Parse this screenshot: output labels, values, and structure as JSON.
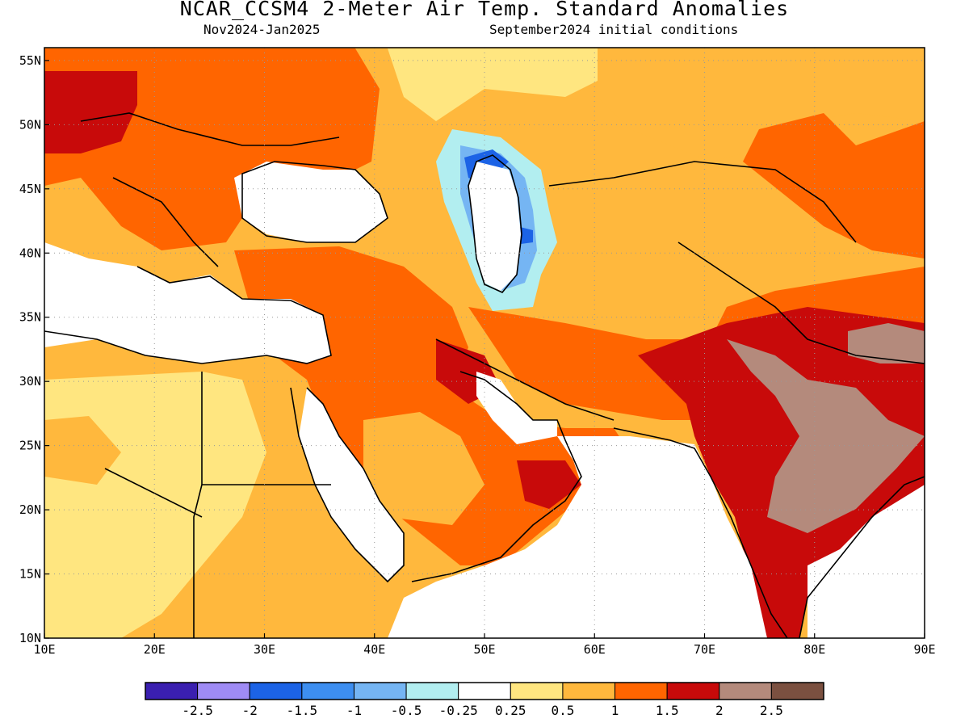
{
  "title": "NCAR_CCSM4 2-Meter Air Temp. Standard Anomalies",
  "subtitle_left": "Nov2024-Jan2025",
  "subtitle_right": "September2024 initial conditions",
  "map": {
    "lon_range": [
      10,
      90
    ],
    "lat_range": [
      10,
      56
    ],
    "lon_ticks": [
      {
        "value": 10,
        "label": "10E"
      },
      {
        "value": 20,
        "label": "20E"
      },
      {
        "value": 30,
        "label": "30E"
      },
      {
        "value": 40,
        "label": "40E"
      },
      {
        "value": 50,
        "label": "50E"
      },
      {
        "value": 60,
        "label": "60E"
      },
      {
        "value": 70,
        "label": "70E"
      },
      {
        "value": 80,
        "label": "80E"
      },
      {
        "value": 90,
        "label": "90E"
      }
    ],
    "lat_ticks": [
      {
        "value": 10,
        "label": "10N"
      },
      {
        "value": 15,
        "label": "15N"
      },
      {
        "value": 20,
        "label": "20N"
      },
      {
        "value": 25,
        "label": "25N"
      },
      {
        "value": 30,
        "label": "30N"
      },
      {
        "value": 35,
        "label": "35N"
      },
      {
        "value": 40,
        "label": "40N"
      },
      {
        "value": 45,
        "label": "45N"
      },
      {
        "value": 50,
        "label": "50N"
      },
      {
        "value": 55,
        "label": "55N"
      }
    ],
    "gridlines": "dotted",
    "ocean_color": "#ffffff"
  },
  "colorbar": {
    "colors": [
      "#3a1fb0",
      "#9f8bf5",
      "#1c63e6",
      "#3d8ef0",
      "#75b5f3",
      "#b2eef0",
      "#ffffff",
      "#ffe680",
      "#ffb83d",
      "#ff6500",
      "#c80a0a",
      "#b48a7c",
      "#7b5040"
    ],
    "labels": [
      "-2.5",
      "-2",
      "-1.5",
      "-1",
      "-0.5",
      "-0.25",
      "0.25",
      "0.5",
      "1",
      "1.5",
      "2",
      "2.5"
    ]
  }
}
